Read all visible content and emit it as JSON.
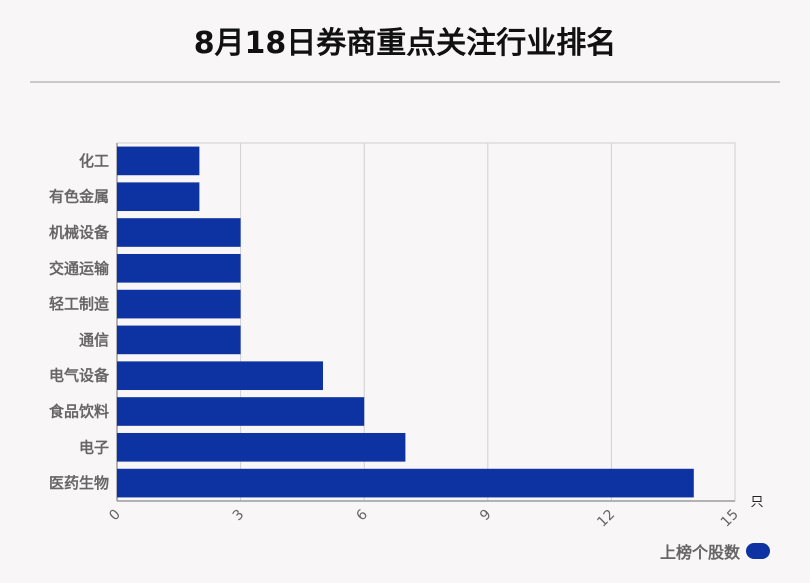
{
  "title": "8月18日券商重点关注行业排名",
  "legend": {
    "label": "上榜个股数"
  },
  "colors": {
    "bar": "#0c33a1",
    "grid": "#d0d0d0",
    "axis": "#9b9b9b",
    "label": "#666666"
  },
  "chart_data": {
    "type": "bar",
    "orientation": "horizontal",
    "title": "8月18日券商重点关注行业排名",
    "xlabel": "只",
    "ylabel": "",
    "xlim": [
      0,
      15
    ],
    "xticks": [
      0,
      3,
      6,
      9,
      12,
      15
    ],
    "grid": true,
    "legend_position": "bottom-right",
    "categories": [
      "化工",
      "有色金属",
      "机械设备",
      "交通运输",
      "轻工制造",
      "通信",
      "电气设备",
      "食品饮料",
      "电子",
      "医药生物"
    ],
    "series": [
      {
        "name": "上榜个股数",
        "values": [
          2,
          2,
          3,
          3,
          3,
          3,
          5,
          6,
          7,
          14
        ]
      }
    ]
  }
}
